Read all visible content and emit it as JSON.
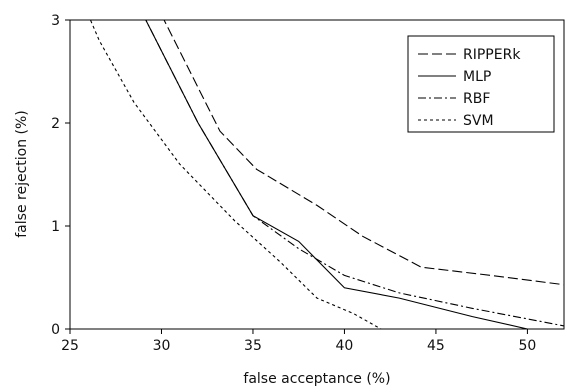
{
  "chart_data": {
    "type": "line",
    "title": "",
    "xlabel": "false acceptance (%)",
    "ylabel": "false rejection (%)",
    "xlim": [
      25,
      52
    ],
    "ylim": [
      0,
      3
    ],
    "xticks": [
      25,
      30,
      35,
      40,
      45,
      50
    ],
    "yticks": [
      0,
      1,
      2,
      3
    ],
    "grid": false,
    "legend_position": "top-right",
    "series": [
      {
        "name": "RIPPERk",
        "dash": "dashed",
        "x": [
          30.0,
          33.2,
          35.2,
          38.5,
          41.0,
          44.2,
          48.0,
          52.0
        ],
        "y": [
          3.05,
          1.92,
          1.55,
          1.2,
          0.9,
          0.6,
          0.52,
          0.43
        ]
      },
      {
        "name": "MLP",
        "dash": "solid",
        "x": [
          29.0,
          32.0,
          35.0,
          37.5,
          40.0,
          43.0,
          47.0,
          50.0
        ],
        "y": [
          3.05,
          2.0,
          1.1,
          0.85,
          0.4,
          0.3,
          0.12,
          0.0
        ]
      },
      {
        "name": "RBF",
        "dash": "dashdot",
        "x": [
          29.0,
          32.0,
          35.0,
          37.5,
          40.0,
          43.0,
          47.0,
          52.0
        ],
        "y": [
          3.05,
          2.0,
          1.1,
          0.78,
          0.52,
          0.35,
          0.2,
          0.03
        ]
      },
      {
        "name": "SVM",
        "dash": "dotted",
        "x": [
          26.0,
          26.6,
          28.5,
          31.0,
          34.0,
          36.5,
          38.5,
          40.5,
          42.0
        ],
        "y": [
          3.05,
          2.8,
          2.2,
          1.6,
          1.05,
          0.65,
          0.3,
          0.15,
          0.0
        ]
      }
    ]
  }
}
